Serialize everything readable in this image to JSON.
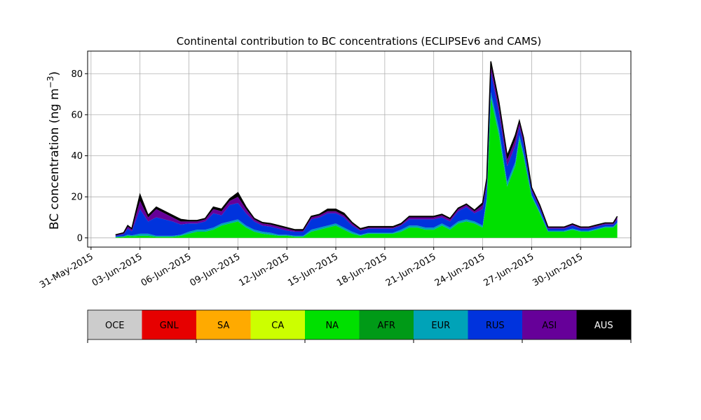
{
  "chart_data": {
    "type": "area",
    "stacked": true,
    "title": "Continental contribution to BC concentrations (ECLIPSEv6 and CAMS)",
    "ylabel_main": "BC concentration (ng m",
    "ylabel_exp": "−3",
    "ylabel_close": ")",
    "xlabel": "",
    "ylim": [
      -4.5,
      91
    ],
    "yticks": [
      0,
      20,
      40,
      60,
      80
    ],
    "xlim": [
      "2015-05-30T19:00",
      "2015-07-03T02:00"
    ],
    "xticks": [
      {
        "date": "2015-05-31",
        "label": "31-May-2015"
      },
      {
        "date": "2015-06-03",
        "label": "03-Jun-2015"
      },
      {
        "date": "2015-06-06",
        "label": "06-Jun-2015"
      },
      {
        "date": "2015-06-09",
        "label": "09-Jun-2015"
      },
      {
        "date": "2015-06-12",
        "label": "12-Jun-2015"
      },
      {
        "date": "2015-06-15",
        "label": "15-Jun-2015"
      },
      {
        "date": "2015-06-18",
        "label": "18-Jun-2015"
      },
      {
        "date": "2015-06-21",
        "label": "21-Jun-2015"
      },
      {
        "date": "2015-06-24",
        "label": "24-Jun-2015"
      },
      {
        "date": "2015-06-27",
        "label": "27-Jun-2015"
      },
      {
        "date": "2015-06-30",
        "label": "30-Jun-2015"
      }
    ],
    "grid": true,
    "legend": "colorbar-below",
    "categories": [
      {
        "name": "OCE",
        "color": "#cccccc",
        "text_color": "#000000"
      },
      {
        "name": "GNL",
        "color": "#e60000",
        "text_color": "#000000"
      },
      {
        "name": "SA",
        "color": "#ffaa00",
        "text_color": "#000000"
      },
      {
        "name": "CA",
        "color": "#ccff00",
        "text_color": "#000000"
      },
      {
        "name": "NA",
        "color": "#00e000",
        "text_color": "#000000"
      },
      {
        "name": "AFR",
        "color": "#009a17",
        "text_color": "#000000"
      },
      {
        "name": "EUR",
        "color": "#00a3b8",
        "text_color": "#000000"
      },
      {
        "name": "RUS",
        "color": "#0033dd",
        "text_color": "#000000"
      },
      {
        "name": "ASI",
        "color": "#660099",
        "text_color": "#000000"
      },
      {
        "name": "AUS",
        "color": "#000000",
        "text_color": "#ffffff"
      }
    ],
    "x": [
      "2015-06-01T12:00",
      "2015-06-02T00:00",
      "2015-06-02T06:00",
      "2015-06-02T12:00",
      "2015-06-03T00:00",
      "2015-06-03T12:00",
      "2015-06-04T00:00",
      "2015-06-04T12:00",
      "2015-06-05T00:00",
      "2015-06-05T12:00",
      "2015-06-06T00:00",
      "2015-06-06T12:00",
      "2015-06-07T00:00",
      "2015-06-07T12:00",
      "2015-06-08T00:00",
      "2015-06-08T12:00",
      "2015-06-09T00:00",
      "2015-06-09T12:00",
      "2015-06-10T00:00",
      "2015-06-10T12:00",
      "2015-06-11T00:00",
      "2015-06-11T12:00",
      "2015-06-12T00:00",
      "2015-06-12T12:00",
      "2015-06-13T00:00",
      "2015-06-13T12:00",
      "2015-06-14T00:00",
      "2015-06-14T12:00",
      "2015-06-15T00:00",
      "2015-06-15T12:00",
      "2015-06-16T00:00",
      "2015-06-16T12:00",
      "2015-06-17T00:00",
      "2015-06-17T12:00",
      "2015-06-18T00:00",
      "2015-06-18T12:00",
      "2015-06-19T00:00",
      "2015-06-19T12:00",
      "2015-06-20T00:00",
      "2015-06-20T12:00",
      "2015-06-21T00:00",
      "2015-06-21T12:00",
      "2015-06-22T00:00",
      "2015-06-22T12:00",
      "2015-06-23T00:00",
      "2015-06-23T12:00",
      "2015-06-24T00:00",
      "2015-06-24T06:00",
      "2015-06-24T12:00",
      "2015-06-25T00:00",
      "2015-06-25T12:00",
      "2015-06-26T00:00",
      "2015-06-26T06:00",
      "2015-06-26T12:00",
      "2015-06-27T00:00",
      "2015-06-27T12:00",
      "2015-06-28T00:00",
      "2015-06-28T12:00",
      "2015-06-29T00:00",
      "2015-06-29T12:00",
      "2015-06-30T00:00",
      "2015-06-30T12:00",
      "2015-07-01T00:00",
      "2015-07-01T12:00",
      "2015-07-02T00:00",
      "2015-07-02T06:00"
    ],
    "series": [
      {
        "name": "NA",
        "values": [
          0.3,
          0.5,
          1,
          0.8,
          1,
          1,
          0.5,
          0.5,
          0.5,
          1,
          2,
          3,
          3,
          4,
          6,
          7,
          8,
          5,
          3,
          2,
          1.5,
          1,
          1,
          0.5,
          0.5,
          3,
          4,
          5,
          6,
          4,
          2,
          1,
          2,
          2,
          2,
          2,
          3,
          5,
          5,
          4,
          4,
          6,
          4,
          7,
          8,
          7,
          5,
          18,
          68,
          50,
          25,
          35,
          48,
          40,
          20,
          12,
          3,
          3,
          3,
          4,
          3,
          3,
          4,
          5,
          5,
          7
        ]
      },
      {
        "name": "EUR",
        "values": [
          0.2,
          0.3,
          0.5,
          0.4,
          1,
          1,
          0.5,
          0.5,
          0.5,
          0.5,
          1,
          1,
          1,
          1,
          1,
          1,
          1,
          1,
          1,
          1,
          1,
          0.5,
          0.5,
          0.5,
          0.5,
          1,
          1,
          1,
          1,
          1,
          1,
          0.5,
          0.5,
          0.5,
          0.5,
          0.5,
          1,
          1,
          1,
          1,
          1,
          1,
          1,
          1,
          1,
          1,
          1,
          2,
          3,
          3,
          2,
          2,
          2,
          2,
          1,
          1,
          0.5,
          0.5,
          0.5,
          0.5,
          0.5,
          0.5,
          0.5,
          0.5,
          0.5,
          0.5
        ]
      },
      {
        "name": "RUS",
        "values": [
          0.5,
          1,
          3,
          2,
          12,
          6,
          9,
          8,
          7,
          5,
          4,
          3,
          4,
          7,
          4,
          8,
          8,
          6,
          4,
          3,
          3,
          3,
          2,
          2,
          2,
          5,
          5,
          6,
          5,
          5,
          3,
          2,
          2,
          2,
          2,
          2,
          2,
          3,
          3,
          4,
          4,
          3,
          3,
          5,
          6,
          4,
          8,
          6,
          10,
          8,
          8,
          8,
          4,
          4,
          2,
          1.5,
          1,
          1,
          1,
          1.5,
          1,
          1,
          1,
          1,
          1,
          1.5
        ]
      },
      {
        "name": "ASI",
        "values": [
          0.3,
          0.5,
          1,
          1,
          4,
          2,
          4,
          3,
          2,
          1.5,
          1,
          1,
          1,
          2,
          2,
          2,
          3,
          2,
          1,
          1,
          1,
          1,
          1,
          0.5,
          0.5,
          1,
          1,
          1,
          1,
          1,
          1,
          0.5,
          0.5,
          0.5,
          0.5,
          0.5,
          0.5,
          1,
          1,
          1,
          1,
          1,
          1,
          1,
          1,
          1,
          2,
          2,
          3,
          3,
          3,
          3,
          2,
          2,
          1,
          1,
          0.5,
          0.5,
          0.5,
          0.5,
          0.5,
          0.5,
          0.5,
          0.5,
          0.5,
          1
        ]
      },
      {
        "name": "AUS",
        "values": [
          0.2,
          0.2,
          0.5,
          0.3,
          3,
          1,
          1,
          1,
          1,
          1,
          0.5,
          0.5,
          0.5,
          1,
          1,
          1,
          2,
          1,
          0.5,
          0.5,
          0.5,
          0.5,
          0.5,
          0.5,
          0.5,
          0.5,
          0.5,
          1,
          1,
          1,
          0.5,
          0.5,
          0.5,
          0.5,
          0.5,
          0.5,
          0.5,
          0.5,
          0.5,
          0.5,
          0.5,
          0.5,
          0.5,
          0.5,
          0.5,
          0.5,
          1,
          1,
          2,
          2,
          2,
          2,
          1,
          1,
          0.5,
          0.5,
          0.3,
          0.3,
          0.3,
          0.3,
          0.3,
          0.3,
          0.3,
          0.3,
          0.3,
          0.5
        ]
      }
    ]
  }
}
